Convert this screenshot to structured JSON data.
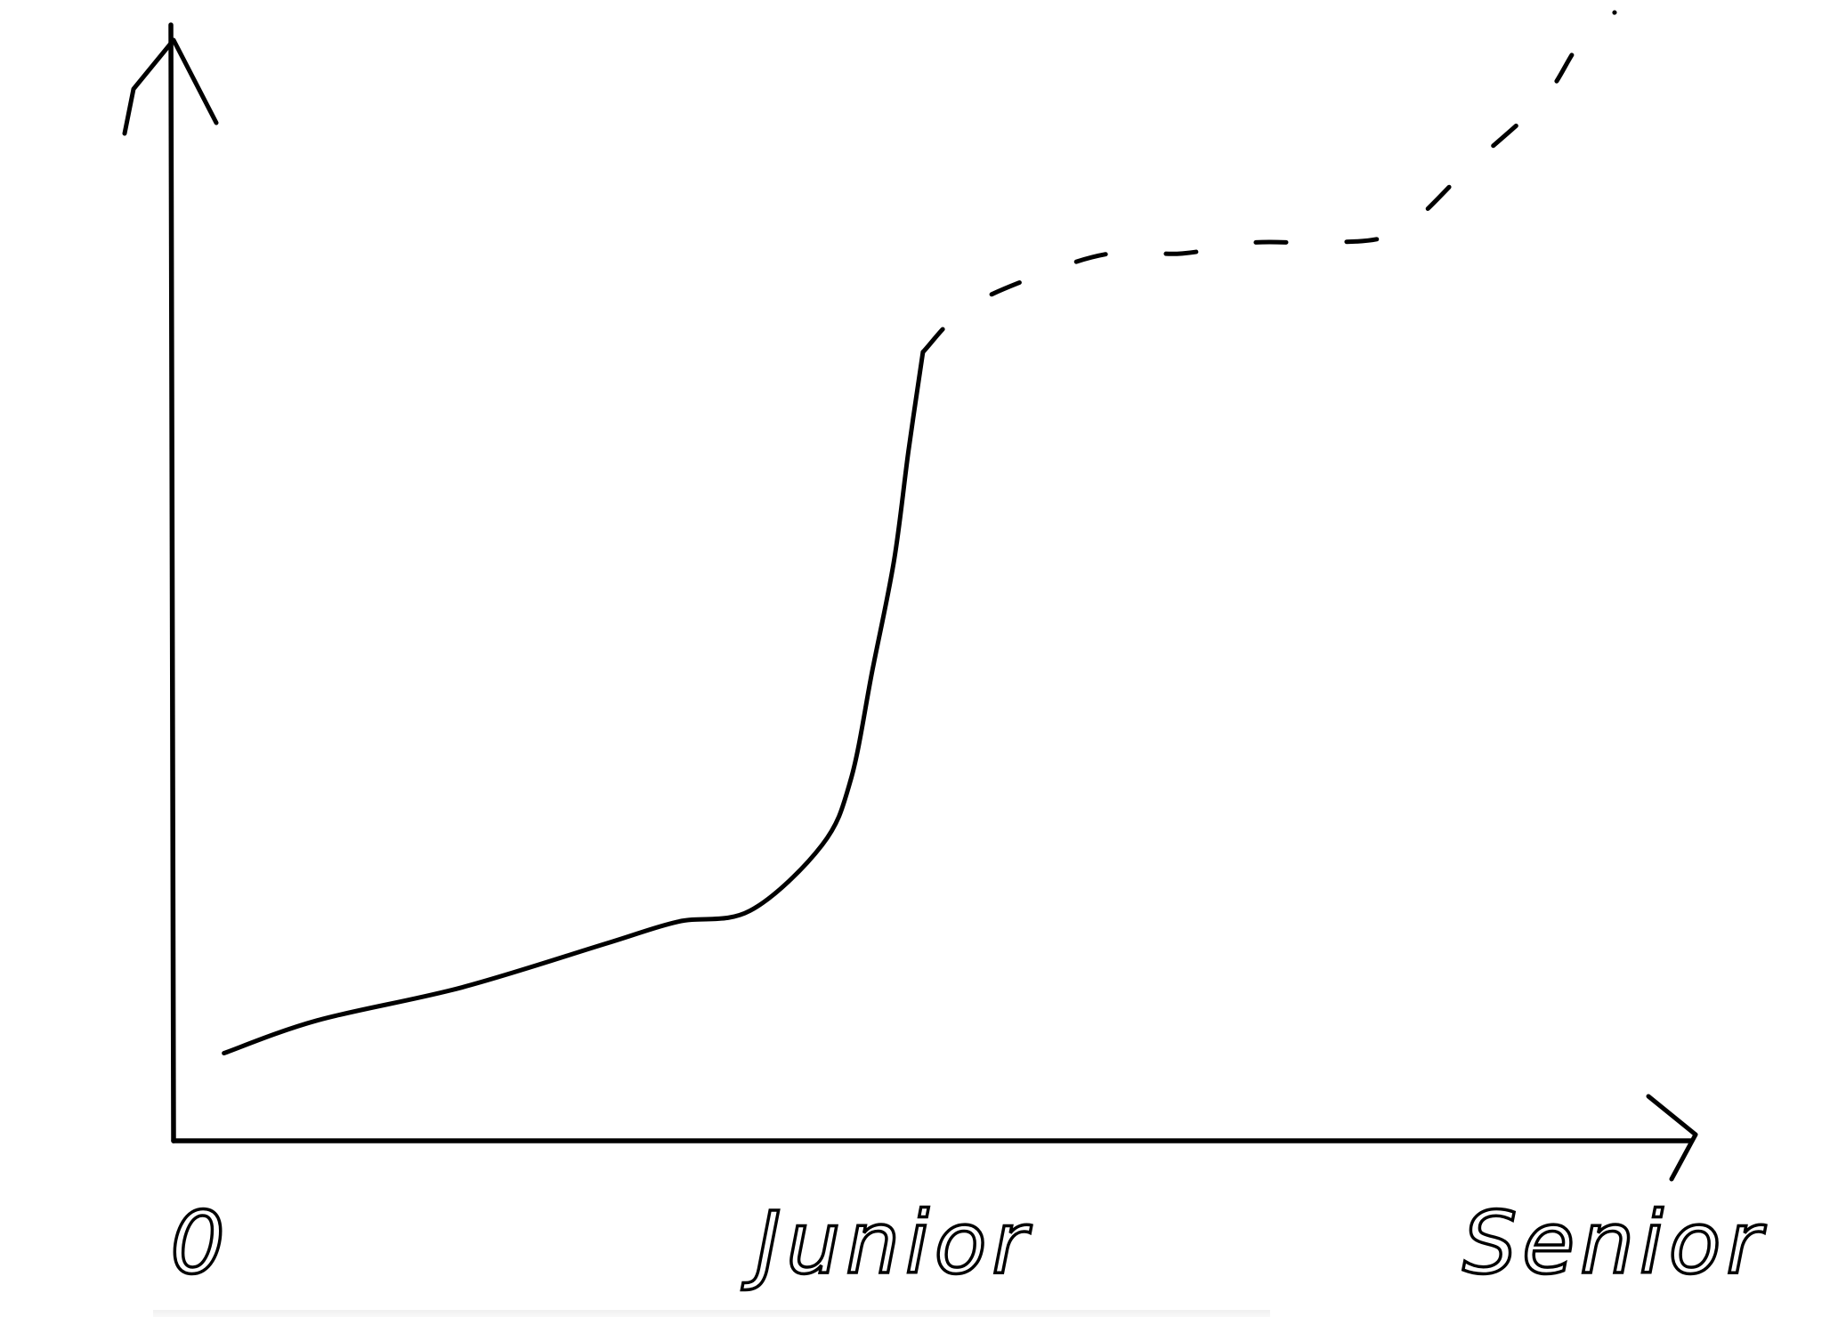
{
  "chart_data": {
    "type": "line",
    "title": "",
    "xlabel": "",
    "ylabel": "",
    "x_ticks": [
      {
        "value": 0,
        "label": "0"
      },
      {
        "value": 5,
        "label": "Junior"
      },
      {
        "value": 10,
        "label": "Senior"
      }
    ],
    "xlim": [
      0,
      10.5
    ],
    "ylim": [
      0,
      10.3
    ],
    "grid": false,
    "legend": "none",
    "series": [
      {
        "style": "solid",
        "x": [
          0.35,
          1.0,
          2.0,
          3.0,
          3.5,
          4.0,
          4.5,
          4.7,
          4.85,
          5.0,
          5.1,
          5.2
        ],
        "y": [
          0.8,
          1.1,
          1.4,
          1.8,
          2.0,
          2.1,
          2.7,
          3.3,
          4.3,
          5.3,
          6.3,
          7.2
        ]
      },
      {
        "style": "dashed",
        "x": [
          5.2,
          5.5,
          6.0,
          6.5,
          7.0,
          7.5,
          8.0,
          8.5,
          9.0,
          9.5,
          9.75,
          10.0
        ],
        "y": [
          7.2,
          7.6,
          7.9,
          8.1,
          8.1,
          8.2,
          8.2,
          8.3,
          8.9,
          9.5,
          10.0,
          10.3
        ]
      }
    ]
  }
}
